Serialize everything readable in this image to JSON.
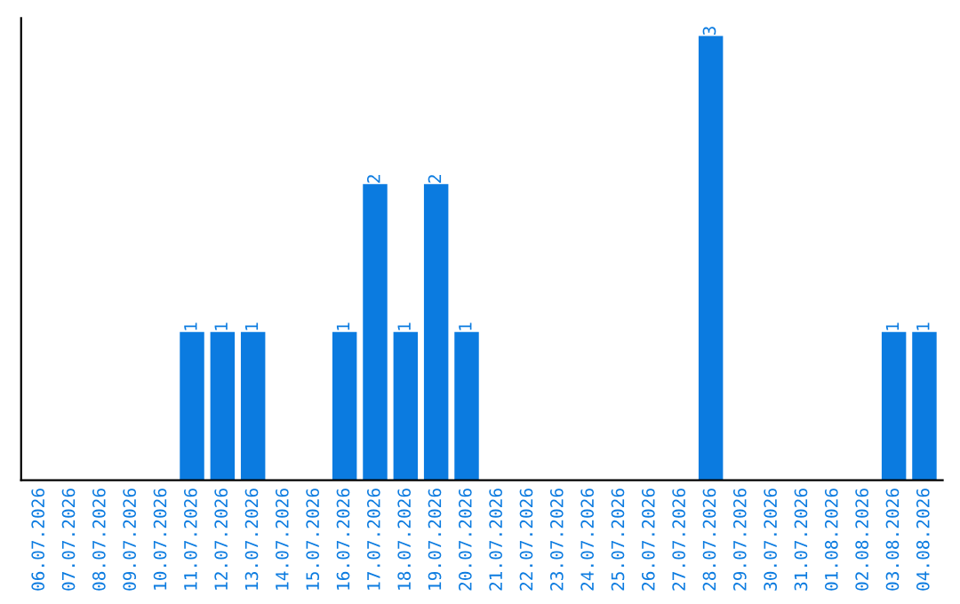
{
  "chart_data": {
    "type": "bar",
    "categories": [
      "06.07.2026",
      "07.07.2026",
      "08.07.2026",
      "09.07.2026",
      "10.07.2026",
      "11.07.2026",
      "12.07.2026",
      "13.07.2026",
      "14.07.2026",
      "15.07.2026",
      "16.07.2026",
      "17.07.2026",
      "18.07.2026",
      "19.07.2026",
      "20.07.2026",
      "21.07.2026",
      "22.07.2026",
      "23.07.2026",
      "24.07.2026",
      "25.07.2026",
      "26.07.2026",
      "27.07.2026",
      "28.07.2026",
      "29.07.2026",
      "30.07.2026",
      "31.07.2026",
      "01.08.2026",
      "02.08.2026",
      "03.08.2026",
      "04.08.2026"
    ],
    "values": [
      0,
      0,
      0,
      0,
      0,
      1,
      1,
      1,
      0,
      0,
      1,
      2,
      1,
      2,
      1,
      0,
      0,
      0,
      0,
      0,
      0,
      0,
      3,
      0,
      0,
      0,
      0,
      0,
      1,
      1
    ],
    "color": "#0b7be0",
    "value_labels": [
      null,
      null,
      null,
      null,
      null,
      "1",
      "1",
      "1",
      null,
      null,
      "1",
      "2",
      "1",
      "2",
      "1",
      null,
      null,
      null,
      null,
      null,
      null,
      null,
      "3",
      null,
      null,
      null,
      null,
      null,
      "1",
      "1"
    ],
    "tick_labels": "x",
    "grid": false
  }
}
